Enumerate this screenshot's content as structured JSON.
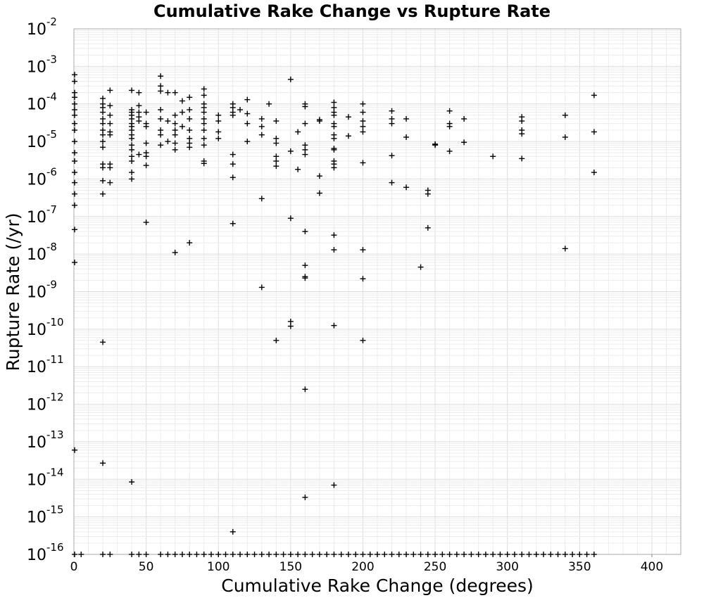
{
  "chart_data": {
    "type": "scatter",
    "title": "Cumulative Rake Change vs Rupture Rate",
    "xlabel": "Cumulative Rake Change (degrees)",
    "ylabel": "Rupture Rate (/yr)",
    "xlim": [
      0,
      420
    ],
    "ylim": [
      1e-16,
      0.01
    ],
    "xscale": "linear",
    "yscale": "log",
    "grid": true,
    "marker": "+",
    "marker_color": "#000000",
    "x_ticks": [
      "0",
      "50",
      "100",
      "150",
      "200",
      "250",
      "300",
      "350",
      "400"
    ],
    "y_ticks": [
      {
        "base": "10",
        "exp": "-16"
      },
      {
        "base": "10",
        "exp": "-15"
      },
      {
        "base": "10",
        "exp": "-14"
      },
      {
        "base": "10",
        "exp": "-13"
      },
      {
        "base": "10",
        "exp": "-12"
      },
      {
        "base": "10",
        "exp": "-11"
      },
      {
        "base": "10",
        "exp": "-10"
      },
      {
        "base": "10",
        "exp": "-9"
      },
      {
        "base": "10",
        "exp": "-8"
      },
      {
        "base": "10",
        "exp": "-7"
      },
      {
        "base": "10",
        "exp": "-6"
      },
      {
        "base": "10",
        "exp": "-5"
      },
      {
        "base": "10",
        "exp": "-4"
      },
      {
        "base": "10",
        "exp": "-3"
      },
      {
        "base": "10",
        "exp": "-2"
      }
    ],
    "points": [
      {
        "x": 0,
        "y": 0.0002
      },
      {
        "x": 0,
        "y": 0.00015
      },
      {
        "x": 0,
        "y": 0.0001
      },
      {
        "x": 0,
        "y": 7e-05
      },
      {
        "x": 0,
        "y": 5e-05
      },
      {
        "x": 0,
        "y": 3e-05
      },
      {
        "x": 0,
        "y": 2e-05
      },
      {
        "x": 0,
        "y": 1e-05
      },
      {
        "x": 0,
        "y": 5e-06
      },
      {
        "x": 0,
        "y": 3e-06
      },
      {
        "x": 0,
        "y": 1.5e-06
      },
      {
        "x": 0,
        "y": 8e-07
      },
      {
        "x": 0,
        "y": 4e-07
      },
      {
        "x": 0,
        "y": 2e-07
      },
      {
        "x": 0,
        "y": 4.5e-08
      },
      {
        "x": 0,
        "y": 6e-09
      },
      {
        "x": 0,
        "y": 6e-14
      },
      {
        "x": 0,
        "y": 0.0004
      },
      {
        "x": 0,
        "y": 0.0006
      },
      {
        "x": 20,
        "y": 0.00014
      },
      {
        "x": 20,
        "y": 0.0001
      },
      {
        "x": 20,
        "y": 8e-05
      },
      {
        "x": 20,
        "y": 6e-05
      },
      {
        "x": 20,
        "y": 4e-05
      },
      {
        "x": 20,
        "y": 3e-05
      },
      {
        "x": 20,
        "y": 2e-05
      },
      {
        "x": 20,
        "y": 1.5e-05
      },
      {
        "x": 20,
        "y": 1e-05
      },
      {
        "x": 20,
        "y": 7e-06
      },
      {
        "x": 20,
        "y": 2.5e-06
      },
      {
        "x": 20,
        "y": 2e-06
      },
      {
        "x": 20,
        "y": 9e-07
      },
      {
        "x": 20,
        "y": 4e-07
      },
      {
        "x": 20,
        "y": 4.5e-11
      },
      {
        "x": 20,
        "y": 2.7e-14
      },
      {
        "x": 25,
        "y": 0.00023
      },
      {
        "x": 25,
        "y": 9e-05
      },
      {
        "x": 25,
        "y": 5e-05
      },
      {
        "x": 25,
        "y": 3e-05
      },
      {
        "x": 25,
        "y": 1.8e-05
      },
      {
        "x": 25,
        "y": 1.5e-05
      },
      {
        "x": 25,
        "y": 2.5e-06
      },
      {
        "x": 25,
        "y": 2e-06
      },
      {
        "x": 25,
        "y": 8e-07
      },
      {
        "x": 40,
        "y": 0.00023
      },
      {
        "x": 40,
        "y": 7e-05
      },
      {
        "x": 40,
        "y": 6e-05
      },
      {
        "x": 40,
        "y": 5e-05
      },
      {
        "x": 40,
        "y": 4e-05
      },
      {
        "x": 40,
        "y": 3e-05
      },
      {
        "x": 40,
        "y": 2.5e-05
      },
      {
        "x": 40,
        "y": 2e-05
      },
      {
        "x": 40,
        "y": 1.5e-05
      },
      {
        "x": 40,
        "y": 1.2e-05
      },
      {
        "x": 40,
        "y": 8e-06
      },
      {
        "x": 40,
        "y": 6e-06
      },
      {
        "x": 40,
        "y": 4e-06
      },
      {
        "x": 40,
        "y": 3e-06
      },
      {
        "x": 40,
        "y": 1.5e-06
      },
      {
        "x": 40,
        "y": 1e-06
      },
      {
        "x": 40,
        "y": 8.5e-15
      },
      {
        "x": 45,
        "y": 0.0002
      },
      {
        "x": 45,
        "y": 9e-05
      },
      {
        "x": 45,
        "y": 6e-05
      },
      {
        "x": 45,
        "y": 4.5e-05
      },
      {
        "x": 45,
        "y": 3.5e-05
      },
      {
        "x": 45,
        "y": 4.5e-06
      },
      {
        "x": 50,
        "y": 6e-05
      },
      {
        "x": 50,
        "y": 3e-05
      },
      {
        "x": 50,
        "y": 2.5e-05
      },
      {
        "x": 50,
        "y": 9e-06
      },
      {
        "x": 50,
        "y": 5e-06
      },
      {
        "x": 50,
        "y": 4e-06
      },
      {
        "x": 50,
        "y": 2.3e-06
      },
      {
        "x": 50,
        "y": 7e-08
      },
      {
        "x": 60,
        "y": 0.00055
      },
      {
        "x": 60,
        "y": 0.0003
      },
      {
        "x": 60,
        "y": 0.00022
      },
      {
        "x": 60,
        "y": 7e-05
      },
      {
        "x": 60,
        "y": 4e-05
      },
      {
        "x": 60,
        "y": 2e-05
      },
      {
        "x": 60,
        "y": 1.5e-05
      },
      {
        "x": 60,
        "y": 8e-06
      },
      {
        "x": 65,
        "y": 0.0002
      },
      {
        "x": 65,
        "y": 3.5e-05
      },
      {
        "x": 65,
        "y": 1e-05
      },
      {
        "x": 70,
        "y": 0.0002
      },
      {
        "x": 70,
        "y": 5e-05
      },
      {
        "x": 70,
        "y": 3e-05
      },
      {
        "x": 70,
        "y": 2e-05
      },
      {
        "x": 70,
        "y": 1.5e-05
      },
      {
        "x": 70,
        "y": 9e-06
      },
      {
        "x": 70,
        "y": 6e-06
      },
      {
        "x": 70,
        "y": 1.1e-08
      },
      {
        "x": 75,
        "y": 0.00012
      },
      {
        "x": 75,
        "y": 6e-05
      },
      {
        "x": 75,
        "y": 2.5e-05
      },
      {
        "x": 80,
        "y": 0.00015
      },
      {
        "x": 80,
        "y": 7e-05
      },
      {
        "x": 80,
        "y": 4e-05
      },
      {
        "x": 80,
        "y": 2e-05
      },
      {
        "x": 80,
        "y": 1.2e-05
      },
      {
        "x": 80,
        "y": 9e-06
      },
      {
        "x": 80,
        "y": 7e-06
      },
      {
        "x": 80,
        "y": 2e-08
      },
      {
        "x": 90,
        "y": 0.00025
      },
      {
        "x": 90,
        "y": 0.00017
      },
      {
        "x": 90,
        "y": 0.0001
      },
      {
        "x": 90,
        "y": 8e-05
      },
      {
        "x": 90,
        "y": 6e-05
      },
      {
        "x": 90,
        "y": 4e-05
      },
      {
        "x": 90,
        "y": 3e-05
      },
      {
        "x": 90,
        "y": 2e-05
      },
      {
        "x": 90,
        "y": 1.2e-05
      },
      {
        "x": 90,
        "y": 8e-06
      },
      {
        "x": 90,
        "y": 3e-06
      },
      {
        "x": 90,
        "y": 2.6e-06
      },
      {
        "x": 100,
        "y": 5e-05
      },
      {
        "x": 100,
        "y": 3.5e-05
      },
      {
        "x": 100,
        "y": 1.8e-05
      },
      {
        "x": 100,
        "y": 1.2e-05
      },
      {
        "x": 110,
        "y": 0.0001
      },
      {
        "x": 110,
        "y": 8e-05
      },
      {
        "x": 110,
        "y": 6e-05
      },
      {
        "x": 110,
        "y": 5e-05
      },
      {
        "x": 110,
        "y": 4.5e-06
      },
      {
        "x": 110,
        "y": 2.5e-06
      },
      {
        "x": 110,
        "y": 1.1e-06
      },
      {
        "x": 110,
        "y": 6.5e-08
      },
      {
        "x": 110,
        "y": 4e-16
      },
      {
        "x": 115,
        "y": 7e-05
      },
      {
        "x": 120,
        "y": 0.00013
      },
      {
        "x": 120,
        "y": 5.5e-05
      },
      {
        "x": 120,
        "y": 3e-05
      },
      {
        "x": 120,
        "y": 1e-05
      },
      {
        "x": 130,
        "y": 4e-05
      },
      {
        "x": 130,
        "y": 2.5e-05
      },
      {
        "x": 130,
        "y": 1.5e-05
      },
      {
        "x": 130,
        "y": 3e-07
      },
      {
        "x": 130,
        "y": 1.3e-09
      },
      {
        "x": 135,
        "y": 0.0001
      },
      {
        "x": 140,
        "y": 3.5e-05
      },
      {
        "x": 140,
        "y": 1.2e-05
      },
      {
        "x": 140,
        "y": 9e-06
      },
      {
        "x": 140,
        "y": 4e-06
      },
      {
        "x": 140,
        "y": 3e-06
      },
      {
        "x": 140,
        "y": 2.2e-06
      },
      {
        "x": 140,
        "y": 5e-11
      },
      {
        "x": 150,
        "y": 0.00045
      },
      {
        "x": 150,
        "y": 5.5e-06
      },
      {
        "x": 150,
        "y": 9e-08
      },
      {
        "x": 150,
        "y": 1.6e-10
      },
      {
        "x": 150,
        "y": 1.2e-10
      },
      {
        "x": 155,
        "y": 1.8e-05
      },
      {
        "x": 155,
        "y": 1.8e-06
      },
      {
        "x": 160,
        "y": 0.0001
      },
      {
        "x": 160,
        "y": 8.5e-05
      },
      {
        "x": 160,
        "y": 3e-05
      },
      {
        "x": 160,
        "y": 8e-06
      },
      {
        "x": 160,
        "y": 6e-06
      },
      {
        "x": 160,
        "y": 4.5e-06
      },
      {
        "x": 160,
        "y": 4e-08
      },
      {
        "x": 160,
        "y": 5e-09
      },
      {
        "x": 160,
        "y": 2.5e-09
      },
      {
        "x": 160,
        "y": 2.3e-09
      },
      {
        "x": 160,
        "y": 2.5e-12
      },
      {
        "x": 160,
        "y": 3.3e-15
      },
      {
        "x": 170,
        "y": 3.8e-05
      },
      {
        "x": 170,
        "y": 3.5e-05
      },
      {
        "x": 170,
        "y": 1.2e-06
      },
      {
        "x": 170,
        "y": 4.2e-07
      },
      {
        "x": 180,
        "y": 0.00011
      },
      {
        "x": 180,
        "y": 8e-05
      },
      {
        "x": 180,
        "y": 6e-05
      },
      {
        "x": 180,
        "y": 5e-05
      },
      {
        "x": 180,
        "y": 3e-05
      },
      {
        "x": 180,
        "y": 2.5e-05
      },
      {
        "x": 180,
        "y": 1.5e-05
      },
      {
        "x": 180,
        "y": 1.2e-05
      },
      {
        "x": 180,
        "y": 6.5e-06
      },
      {
        "x": 180,
        "y": 6e-06
      },
      {
        "x": 180,
        "y": 3e-06
      },
      {
        "x": 180,
        "y": 2.5e-06
      },
      {
        "x": 180,
        "y": 2e-06
      },
      {
        "x": 180,
        "y": 3.2e-08
      },
      {
        "x": 180,
        "y": 1.3e-08
      },
      {
        "x": 180,
        "y": 1.25e-10
      },
      {
        "x": 180,
        "y": 7e-15
      },
      {
        "x": 190,
        "y": 4.5e-05
      },
      {
        "x": 190,
        "y": 1.4e-05
      },
      {
        "x": 200,
        "y": 0.0001
      },
      {
        "x": 200,
        "y": 6e-05
      },
      {
        "x": 200,
        "y": 3.5e-05
      },
      {
        "x": 200,
        "y": 2.5e-05
      },
      {
        "x": 200,
        "y": 1.8e-05
      },
      {
        "x": 200,
        "y": 2.7e-06
      },
      {
        "x": 200,
        "y": 1.3e-08
      },
      {
        "x": 200,
        "y": 2.2e-09
      },
      {
        "x": 200,
        "y": 5e-11
      },
      {
        "x": 220,
        "y": 6.5e-05
      },
      {
        "x": 220,
        "y": 4e-05
      },
      {
        "x": 220,
        "y": 3e-05
      },
      {
        "x": 220,
        "y": 4.2e-06
      },
      {
        "x": 220,
        "y": 8e-07
      },
      {
        "x": 230,
        "y": 4e-05
      },
      {
        "x": 230,
        "y": 1.3e-05
      },
      {
        "x": 230,
        "y": 6e-07
      },
      {
        "x": 240,
        "y": 4.5e-09
      },
      {
        "x": 245,
        "y": 5e-07
      },
      {
        "x": 245,
        "y": 4e-07
      },
      {
        "x": 245,
        "y": 5e-08
      },
      {
        "x": 250,
        "y": 8.5e-06
      },
      {
        "x": 250,
        "y": 8e-06
      },
      {
        "x": 260,
        "y": 6.5e-05
      },
      {
        "x": 260,
        "y": 3e-05
      },
      {
        "x": 260,
        "y": 2.5e-05
      },
      {
        "x": 260,
        "y": 5.5e-06
      },
      {
        "x": 270,
        "y": 4e-05
      },
      {
        "x": 270,
        "y": 9.5e-06
      },
      {
        "x": 290,
        "y": 4e-06
      },
      {
        "x": 310,
        "y": 4.5e-05
      },
      {
        "x": 310,
        "y": 3.5e-05
      },
      {
        "x": 310,
        "y": 2e-05
      },
      {
        "x": 310,
        "y": 1.6e-05
      },
      {
        "x": 310,
        "y": 3.5e-06
      },
      {
        "x": 340,
        "y": 5e-05
      },
      {
        "x": 340,
        "y": 1.3e-05
      },
      {
        "x": 340,
        "y": 1.4e-08
      },
      {
        "x": 360,
        "y": 0.00017
      },
      {
        "x": 360,
        "y": 1.8e-05
      },
      {
        "x": 360,
        "y": 1.5e-06
      },
      {
        "x": 0,
        "y": 1e-16
      },
      {
        "x": 5,
        "y": 1e-16
      },
      {
        "x": 20,
        "y": 1e-16
      },
      {
        "x": 25,
        "y": 1e-16
      },
      {
        "x": 40,
        "y": 1e-16
      },
      {
        "x": 45,
        "y": 1e-16
      },
      {
        "x": 50,
        "y": 1e-16
      },
      {
        "x": 60,
        "y": 1e-16
      },
      {
        "x": 65,
        "y": 1e-16
      },
      {
        "x": 70,
        "y": 1e-16
      },
      {
        "x": 75,
        "y": 1e-16
      },
      {
        "x": 80,
        "y": 1e-16
      },
      {
        "x": 85,
        "y": 1e-16
      },
      {
        "x": 90,
        "y": 1e-16
      },
      {
        "x": 95,
        "y": 1e-16
      },
      {
        "x": 100,
        "y": 1e-16
      },
      {
        "x": 105,
        "y": 1e-16
      },
      {
        "x": 110,
        "y": 1e-16
      },
      {
        "x": 115,
        "y": 1e-16
      },
      {
        "x": 120,
        "y": 1e-16
      },
      {
        "x": 125,
        "y": 1e-16
      },
      {
        "x": 130,
        "y": 1e-16
      },
      {
        "x": 135,
        "y": 1e-16
      },
      {
        "x": 140,
        "y": 1e-16
      },
      {
        "x": 145,
        "y": 1e-16
      },
      {
        "x": 150,
        "y": 1e-16
      },
      {
        "x": 155,
        "y": 1e-16
      },
      {
        "x": 160,
        "y": 1e-16
      },
      {
        "x": 165,
        "y": 1e-16
      },
      {
        "x": 170,
        "y": 1e-16
      },
      {
        "x": 175,
        "y": 1e-16
      },
      {
        "x": 180,
        "y": 1e-16
      },
      {
        "x": 185,
        "y": 1e-16
      },
      {
        "x": 190,
        "y": 1e-16
      },
      {
        "x": 195,
        "y": 1e-16
      },
      {
        "x": 200,
        "y": 1e-16
      },
      {
        "x": 205,
        "y": 1e-16
      },
      {
        "x": 210,
        "y": 1e-16
      },
      {
        "x": 215,
        "y": 1e-16
      },
      {
        "x": 220,
        "y": 1e-16
      },
      {
        "x": 225,
        "y": 1e-16
      },
      {
        "x": 230,
        "y": 1e-16
      },
      {
        "x": 235,
        "y": 1e-16
      },
      {
        "x": 240,
        "y": 1e-16
      },
      {
        "x": 245,
        "y": 1e-16
      },
      {
        "x": 250,
        "y": 1e-16
      },
      {
        "x": 255,
        "y": 1e-16
      },
      {
        "x": 260,
        "y": 1e-16
      },
      {
        "x": 265,
        "y": 1e-16
      },
      {
        "x": 270,
        "y": 1e-16
      },
      {
        "x": 275,
        "y": 1e-16
      },
      {
        "x": 280,
        "y": 1e-16
      },
      {
        "x": 285,
        "y": 1e-16
      },
      {
        "x": 290,
        "y": 1e-16
      },
      {
        "x": 295,
        "y": 1e-16
      },
      {
        "x": 300,
        "y": 1e-16
      },
      {
        "x": 305,
        "y": 1e-16
      },
      {
        "x": 310,
        "y": 1e-16
      },
      {
        "x": 315,
        "y": 1e-16
      },
      {
        "x": 320,
        "y": 1e-16
      },
      {
        "x": 325,
        "y": 1e-16
      },
      {
        "x": 330,
        "y": 1e-16
      },
      {
        "x": 335,
        "y": 1e-16
      },
      {
        "x": 340,
        "y": 1e-16
      },
      {
        "x": 345,
        "y": 1e-16
      },
      {
        "x": 350,
        "y": 1e-16
      },
      {
        "x": 355,
        "y": 1e-16
      },
      {
        "x": 360,
        "y": 1e-16
      }
    ]
  }
}
